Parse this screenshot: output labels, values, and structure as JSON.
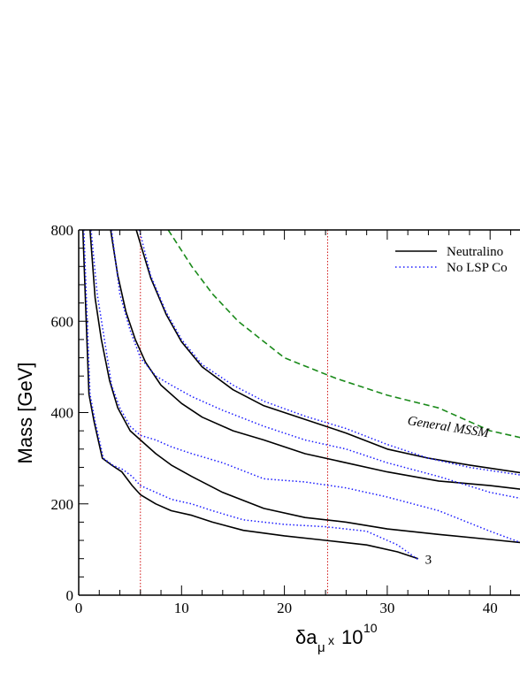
{
  "chart_data": {
    "type": "line",
    "xlabel": "δa",
    "xlabel_sub": "μ",
    "xlabel_times": "x",
    "xlabel_pow": "10",
    "xlabel_exp": "10",
    "ylabel": "Mass  [GeV]",
    "xlim": [
      0,
      43
    ],
    "ylim": [
      0,
      800
    ],
    "x_ticks": [
      0,
      10,
      20,
      30,
      40
    ],
    "y_ticks": [
      0,
      200,
      400,
      600,
      800
    ],
    "x_tick_labels": [
      "0",
      "10",
      "20",
      "30",
      "40"
    ],
    "y_tick_labels": [
      "0",
      "200",
      "400",
      "600",
      "800"
    ],
    "grid": false,
    "legend_position": "top-right",
    "legend": [
      {
        "label": "Neutralino",
        "style": "solid",
        "color": "#000000"
      },
      {
        "label": "No LSP Co",
        "style": "dotted",
        "color": "#1a1aff"
      }
    ],
    "annotations": [
      {
        "text": "General MSSM",
        "x": 34.5,
        "y": 370,
        "rotation": 9
      },
      {
        "text": "3",
        "x": 33.5,
        "y": 78,
        "rotation": 0
      }
    ],
    "vertical_lines": [
      {
        "x": 6,
        "color": "#d01010",
        "style": "dotted"
      },
      {
        "x": 24.2,
        "color": "#d01010",
        "style": "dotted"
      }
    ],
    "series": [
      {
        "style": "dashed",
        "color": "#1a8a1a",
        "x": [
          8.7,
          11,
          13,
          15.5,
          20,
          25,
          30,
          35,
          40,
          43
        ],
        "y": [
          800,
          720,
          660,
          600,
          520,
          475,
          438,
          410,
          360,
          345
        ]
      },
      {
        "style": "solid",
        "color": "#000000",
        "x": [
          5.6,
          7,
          8.5,
          10,
          12,
          15,
          18,
          22,
          26,
          30,
          34,
          38,
          43
        ],
        "y": [
          800,
          695,
          615,
          555,
          500,
          450,
          415,
          385,
          355,
          320,
          300,
          285,
          268
        ]
      },
      {
        "style": "dotted",
        "color": "#1a1aff",
        "x": [
          5.9,
          7,
          8.5,
          10,
          12,
          15,
          18,
          22,
          26,
          30,
          34,
          38,
          43
        ],
        "y": [
          800,
          700,
          620,
          560,
          505,
          460,
          425,
          392,
          365,
          330,
          300,
          280,
          263
        ]
      },
      {
        "style": "solid",
        "color": "#000000",
        "x": [
          3.1,
          3.8,
          4.6,
          5.5,
          6.5,
          8,
          10,
          12,
          15,
          18,
          22,
          26,
          30,
          35,
          40,
          43
        ],
        "y": [
          800,
          700,
          620,
          560,
          510,
          460,
          420,
          390,
          360,
          340,
          310,
          290,
          270,
          250,
          240,
          232
        ]
      },
      {
        "style": "dotted",
        "color": "#1a1aff",
        "x": [
          3.2,
          4,
          5,
          6,
          7.5,
          9,
          11,
          14,
          18,
          22,
          26,
          30,
          35,
          40,
          43
        ],
        "y": [
          800,
          660,
          580,
          520,
          480,
          460,
          435,
          405,
          370,
          340,
          320,
          290,
          260,
          225,
          212
        ]
      },
      {
        "style": "solid",
        "color": "#000000",
        "x": [
          1.1,
          1.6,
          2.2,
          3,
          3.8,
          5,
          6,
          7.5,
          9,
          11,
          14,
          18,
          22,
          26,
          30,
          35,
          40,
          43
        ],
        "y": [
          800,
          650,
          560,
          470,
          410,
          360,
          340,
          310,
          285,
          260,
          225,
          190,
          170,
          160,
          145,
          133,
          122,
          115
        ]
      },
      {
        "style": "dotted",
        "color": "#1a1aff",
        "x": [
          1.2,
          1.8,
          2.5,
          3.2,
          4,
          5,
          6,
          7.5,
          9,
          11,
          14,
          18,
          22,
          26,
          30,
          35,
          40,
          43
        ],
        "y": [
          800,
          660,
          560,
          460,
          410,
          370,
          350,
          340,
          325,
          310,
          290,
          255,
          248,
          235,
          215,
          185,
          140,
          115
        ]
      },
      {
        "style": "solid",
        "color": "#000000",
        "x": [
          0.4,
          0.7,
          1,
          1.5,
          2.3,
          3.2,
          4.2,
          5.2,
          6,
          7.5,
          9,
          11,
          13,
          16,
          20,
          24,
          28,
          31,
          33
        ],
        "y": [
          800,
          620,
          440,
          380,
          300,
          285,
          270,
          240,
          220,
          200,
          185,
          175,
          160,
          142,
          130,
          120,
          110,
          95,
          80
        ]
      },
      {
        "style": "dotted",
        "color": "#1a1aff",
        "x": [
          0.5,
          0.8,
          1.1,
          1.6,
          2.4,
          3.3,
          4.3,
          5.2,
          6,
          7.5,
          9,
          11,
          13,
          16,
          20,
          24,
          28,
          31,
          33
        ],
        "y": [
          800,
          620,
          440,
          380,
          300,
          285,
          275,
          260,
          240,
          225,
          210,
          200,
          185,
          165,
          155,
          150,
          140,
          110,
          78
        ]
      }
    ]
  }
}
